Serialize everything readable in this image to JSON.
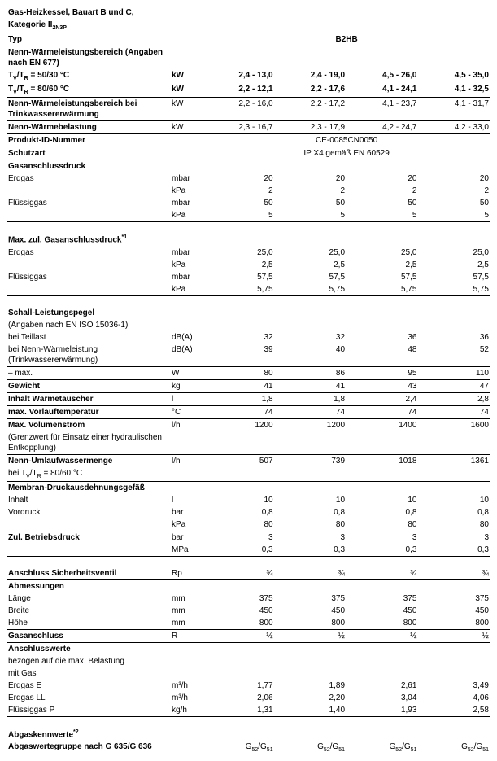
{
  "header": {
    "line1": "Gas-Heizkessel, Bauart B und C,",
    "line2_html": "Kategorie II<sub>2N3P</sub>"
  },
  "typ_label": "Typ",
  "typ_value": "B2HB",
  "rows": [
    {
      "label": "Nenn-Wärmeleistungsbereich (Angaben nach EN 677)",
      "bold": true,
      "bt": true
    },
    {
      "label_html": "T<sub>V</sub>/T<sub>R</sub> = 50/30 °C",
      "bold": true,
      "unit": "kW",
      "vals": [
        "2,4 - 13,0",
        "2,4 - 19,0",
        "4,5 - 26,0",
        "4,5 - 35,0"
      ],
      "bold_vals": true
    },
    {
      "label_html": "T<sub>V</sub>/T<sub>R</sub> = 80/60 °C",
      "bold": true,
      "unit": "kW",
      "vals": [
        "2,2 - 12,1",
        "2,2 - 17,6",
        "4,1 - 24,1",
        "4,1 - 32,5"
      ],
      "bold_vals": true
    },
    {
      "label": "Nenn-Wärmeleistungsbereich bei Trinkwassererwärmung",
      "bold": true,
      "unit": "kW",
      "bt": true,
      "vals": [
        "2,2 - 16,0",
        "2,2 - 17,2",
        "4,1 - 23,7",
        "4,1 - 31,7"
      ]
    },
    {
      "label": "Nenn-Wärmebelastung",
      "bold": true,
      "unit": "kW",
      "bt": true,
      "vals": [
        "2,3 - 16,7",
        "2,3 - 17,9",
        "4,2 - 24,7",
        "4,2 - 33,0"
      ]
    },
    {
      "label": "Produkt-ID-Nummer",
      "bold": true,
      "bt": true,
      "center_val": "CE-0085CN0050"
    },
    {
      "label": "Schutzart",
      "bold": true,
      "bt": true,
      "center_val": "IP X4 gemäß EN 60529"
    },
    {
      "label": "Gasanschlussdruck",
      "bold": true,
      "bt": true
    },
    {
      "label": "Erdgas",
      "unit": "mbar",
      "vals": [
        "20",
        "20",
        "20",
        "20"
      ]
    },
    {
      "label": "",
      "unit": "kPa",
      "vals": [
        "2",
        "2",
        "2",
        "2"
      ]
    },
    {
      "label": "Flüssiggas",
      "unit": "mbar",
      "vals": [
        "50",
        "50",
        "50",
        "50"
      ]
    },
    {
      "label": "",
      "unit": "kPa",
      "vals": [
        "5",
        "5",
        "5",
        "5"
      ]
    },
    {
      "blank": true,
      "bt": true
    },
    {
      "label_html": "Max. zul. Gasanschlussdruck<sup>*1</sup>",
      "bold": true
    },
    {
      "label": "Erdgas",
      "unit": "mbar",
      "vals": [
        "25,0",
        "25,0",
        "25,0",
        "25,0"
      ]
    },
    {
      "label": "",
      "unit": "kPa",
      "vals": [
        "2,5",
        "2,5",
        "2,5",
        "2,5"
      ]
    },
    {
      "label": "Flüssiggas",
      "unit": "mbar",
      "vals": [
        "57,5",
        "57,5",
        "57,5",
        "57,5"
      ]
    },
    {
      "label": "",
      "unit": "kPa",
      "vals": [
        "5,75",
        "5,75",
        "5,75",
        "5,75"
      ]
    },
    {
      "blank": true,
      "bt": true
    },
    {
      "label": "Schall-Leistungspegel",
      "bold": true
    },
    {
      "label": "(Angaben nach EN ISO 15036-1)"
    },
    {
      "label": "bei Teillast",
      "unit": "dB(A)",
      "vals": [
        "32",
        "32",
        "36",
        "36"
      ]
    },
    {
      "label": "bei Nenn-Wärmeleistung (Trinkwassererwärmung)",
      "unit": "dB(A)",
      "vals": [
        "39",
        "40",
        "48",
        "52"
      ]
    },
    {
      "label": "– max.",
      "unit": "W",
      "bt": true,
      "vals": [
        "80",
        "86",
        "95",
        "110"
      ]
    },
    {
      "label": "Gewicht",
      "unit": "kg",
      "bold": true,
      "bt": true,
      "vals": [
        "41",
        "41",
        "43",
        "47"
      ]
    },
    {
      "label": "Inhalt Wärmetauscher",
      "unit": "l",
      "bold": true,
      "bt": true,
      "vals": [
        "1,8",
        "1,8",
        "2,4",
        "2,8"
      ]
    },
    {
      "label": "max. Vorlauftemperatur",
      "unit": "°C",
      "bold": true,
      "bt": true,
      "vals": [
        "74",
        "74",
        "74",
        "74"
      ]
    },
    {
      "label": "Max. Volumenstrom",
      "unit": "l/h",
      "bold": true,
      "bt": true,
      "vals": [
        "1200",
        "1200",
        "1400",
        "1600"
      ]
    },
    {
      "label": "(Grenzwert für Einsatz einer hydraulischen Entkopplung)"
    },
    {
      "label": "Nenn-Umlaufwassermenge",
      "unit": "l/h",
      "bold": true,
      "bt": true,
      "vals": [
        "507",
        "739",
        "1018",
        "1361"
      ]
    },
    {
      "label_html": "bei T<sub>V</sub>/T<sub>R</sub> = 80/60 °C"
    },
    {
      "label": "Membran-Druckausdehnungsgefäß",
      "bold": true,
      "bt": true
    },
    {
      "label": "Inhalt",
      "unit": "l",
      "vals": [
        "10",
        "10",
        "10",
        "10"
      ]
    },
    {
      "label": "Vordruck",
      "unit": "bar",
      "vals": [
        "0,8",
        "0,8",
        "0,8",
        "0,8"
      ]
    },
    {
      "label": "",
      "unit": "kPa",
      "vals": [
        "80",
        "80",
        "80",
        "80"
      ]
    },
    {
      "label": "Zul. Betriebsdruck",
      "unit": "bar",
      "bold": true,
      "bt": true,
      "vals": [
        "3",
        "3",
        "3",
        "3"
      ]
    },
    {
      "label": "",
      "unit": "MPa",
      "vals": [
        "0,3",
        "0,3",
        "0,3",
        "0,3"
      ]
    },
    {
      "blank": true,
      "bt": true
    },
    {
      "label": "Anschluss Sicherheitsventil",
      "unit": "Rp",
      "bold": true,
      "vals": [
        "¾",
        "¾",
        "¾",
        "¾"
      ]
    },
    {
      "label": "Abmessungen",
      "bold": true,
      "bt": true
    },
    {
      "label": "Länge",
      "unit": "mm",
      "vals": [
        "375",
        "375",
        "375",
        "375"
      ]
    },
    {
      "label": "Breite",
      "unit": "mm",
      "vals": [
        "450",
        "450",
        "450",
        "450"
      ]
    },
    {
      "label": "Höhe",
      "unit": "mm",
      "vals": [
        "800",
        "800",
        "800",
        "800"
      ]
    },
    {
      "label": "Gasanschluss",
      "unit": "R",
      "bold": true,
      "bt": true,
      "vals": [
        "½",
        "½",
        "½",
        "½"
      ]
    },
    {
      "label": "Anschlusswerte",
      "bold": true,
      "bt": true
    },
    {
      "label": "bezogen auf die max. Belastung"
    },
    {
      "label": "mit Gas"
    },
    {
      "label": "Erdgas E",
      "unit": "m³/h",
      "vals": [
        "1,77",
        "1,89",
        "2,61",
        "3,49"
      ]
    },
    {
      "label": "Erdgas LL",
      "unit": "m³/h",
      "vals": [
        "2,06",
        "2,20",
        "3,04",
        "4,06"
      ]
    },
    {
      "label": "Flüssiggas P",
      "unit": "kg/h",
      "vals": [
        "1,31",
        "1,40",
        "1,93",
        "2,58"
      ]
    },
    {
      "blank": true,
      "bt": true
    },
    {
      "label_html": "Abgaskennwerte<sup>*2</sup>",
      "bold": true
    },
    {
      "label": "Abgaswertegruppe nach G 635/G 636",
      "bold": true,
      "vals_html": [
        "G<sub>52</sub>/G<sub>51</sub>",
        "G<sub>52</sub>/G<sub>51</sub>",
        "G<sub>52</sub>/G<sub>51</sub>",
        "G<sub>52</sub>/G<sub>51</sub>"
      ]
    }
  ]
}
